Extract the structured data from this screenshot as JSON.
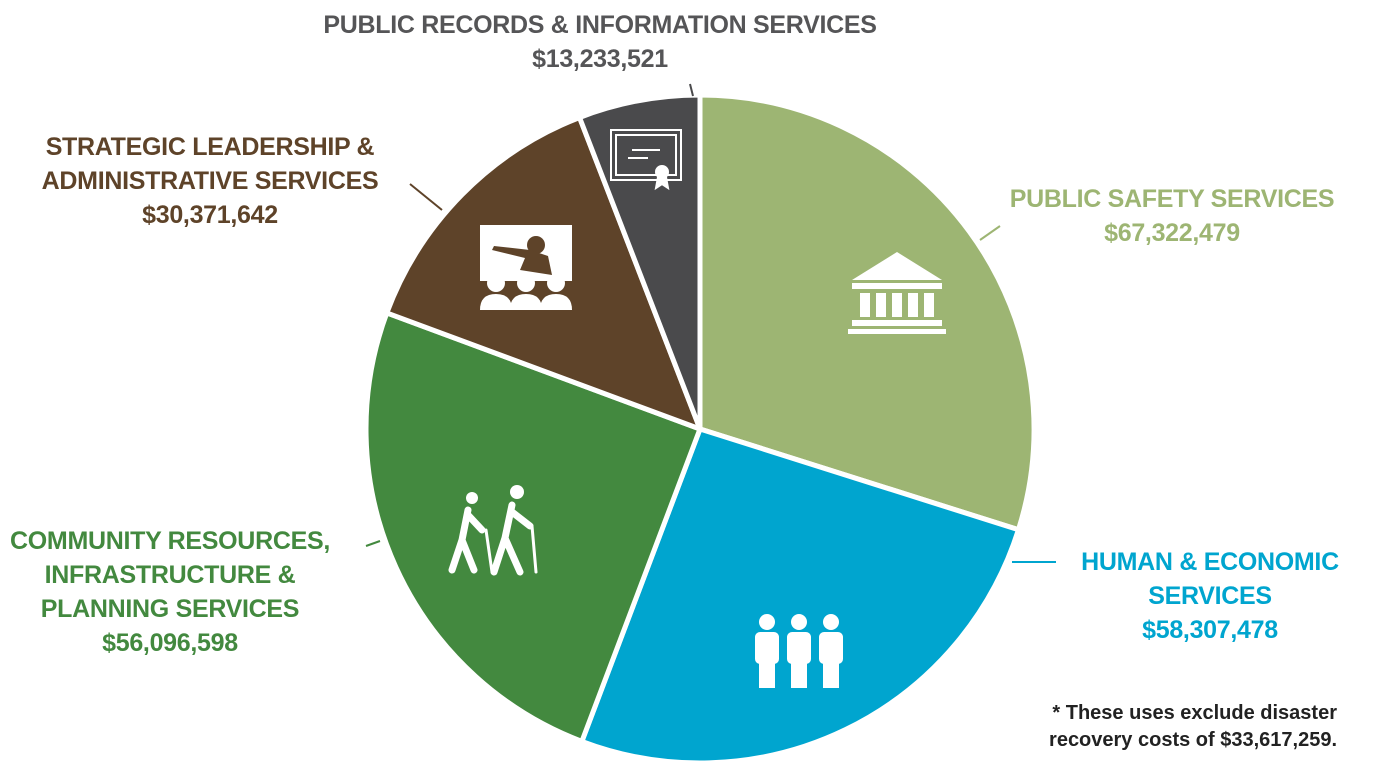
{
  "chart_data": {
    "type": "pie",
    "categories": [
      "PUBLIC SAFETY SERVICES",
      "HUMAN & ECONOMIC SERVICES",
      "COMMUNITY RESOURCES, INFRASTRUCTURE & PLANNING SERVICES",
      "STRATEGIC LEADERSHIP & ADMINISTRATIVE SERVICES",
      "PUBLIC RECORDS & INFORMATION SERVICES"
    ],
    "values": [
      67322479,
      58307478,
      56096598,
      30371642,
      13233521
    ],
    "value_labels": [
      "$67,322,479",
      "$58,307,478",
      "$56,096,598",
      "$30,371,642",
      "$13,233,521"
    ],
    "colors": [
      "#9db573",
      "#00a5cf",
      "#43893f",
      "#5e4329",
      "#4a4a4c"
    ],
    "footnote": "* These uses exclude disaster recovery costs of $33,617,259."
  }
}
